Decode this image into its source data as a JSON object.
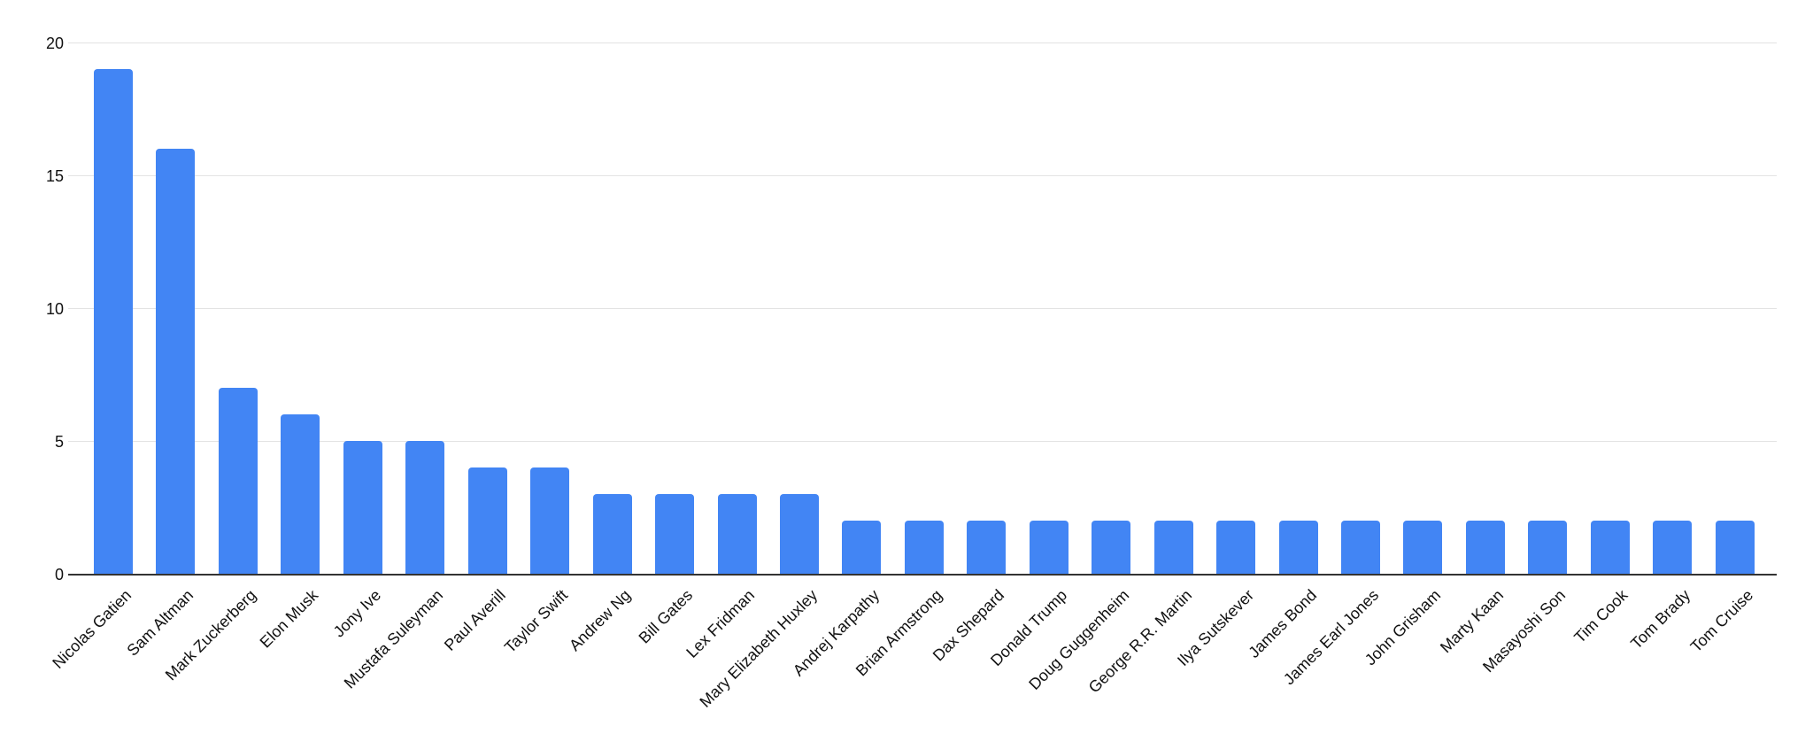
{
  "chart_data": {
    "type": "bar",
    "title": "",
    "xlabel": "",
    "ylabel": "",
    "categories": [
      "Nicolas Gatien",
      "Sam Altman",
      "Mark Zuckerberg",
      "Elon Musk",
      "Jony Ive",
      "Mustafa Suleyman",
      "Paul Averill",
      "Taylor Swift",
      "Andrew Ng",
      "Bill Gates",
      "Lex Fridman",
      "Mary Elizabeth Huxley",
      "Andrej Karpathy",
      "Brian Armstrong",
      "Dax Shepard",
      "Donald Trump",
      "Doug Guggenheim",
      "George R.R. Martin",
      "Ilya Sutskever",
      "James Bond",
      "James Earl Jones",
      "John Grisham",
      "Marty Kaan",
      "Masayoshi Son",
      "Tim Cook",
      "Tom Brady",
      "Tom Cruise"
    ],
    "values": [
      19,
      16,
      7,
      6,
      5,
      5,
      4,
      4,
      3,
      3,
      3,
      3,
      2,
      2,
      2,
      2,
      2,
      2,
      2,
      2,
      2,
      2,
      2,
      2,
      2,
      2,
      2
    ],
    "ylim": [
      0,
      20
    ],
    "ytick_labels": [
      "0",
      "5",
      "10",
      "15",
      "20"
    ],
    "ytick_values": [
      0,
      5,
      10,
      15,
      20
    ],
    "grid": true,
    "legend_position": "none",
    "colors": {
      "bar": "#4285F4",
      "gridline": "#e3e3e3",
      "axis_line": "#333333",
      "label_text": "#111111",
      "background": "#ffffff"
    }
  }
}
